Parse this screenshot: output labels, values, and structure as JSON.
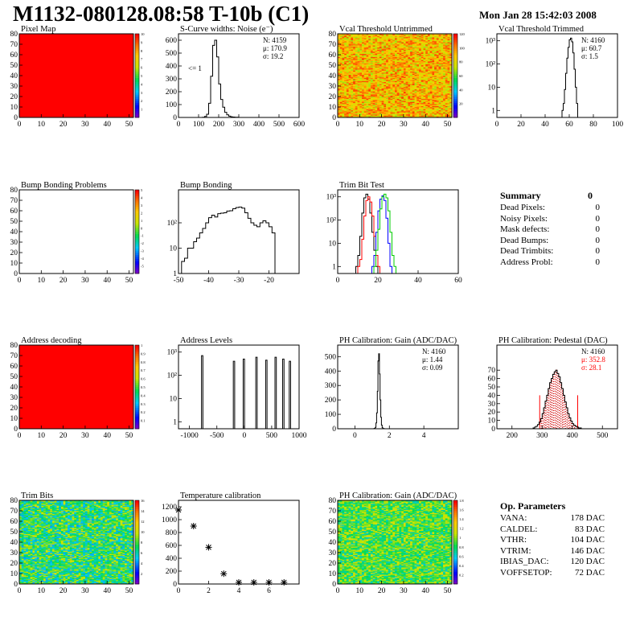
{
  "header": {
    "title": "M1132-080128.08:58 T-10b (C1)",
    "date": "Mon Jan 28 15:42:03 2008"
  },
  "chart_data": [
    {
      "id": "pixel-map",
      "type": "heatmap",
      "title": "Pixel Map",
      "xlim": [
        0,
        52
      ],
      "ylim": [
        0,
        80
      ],
      "xticks": [
        "0",
        "10",
        "20",
        "30",
        "40",
        "50"
      ],
      "yticks": [
        "0",
        "10",
        "20",
        "30",
        "40",
        "50",
        "60",
        "70",
        "80"
      ],
      "zlim": [
        0,
        10
      ],
      "zticks": [
        "1",
        "2",
        "3",
        "4",
        "5",
        "6",
        "7",
        "8",
        "9",
        "10"
      ],
      "fill": "uniform",
      "value": 10
    },
    {
      "id": "scurve-widths",
      "type": "bar",
      "title": "S-Curve widths: Noise (e⁻)",
      "xlim": [
        0,
        600
      ],
      "ylim": [
        0,
        650
      ],
      "xticks": [
        "0",
        "100",
        "200",
        "300",
        "400",
        "500",
        "600"
      ],
      "yticks": [
        "0",
        "100",
        "200",
        "300",
        "400",
        "500",
        "600"
      ],
      "stats": [
        "N: 4159",
        "μ: 170.9",
        "σ: 19.2"
      ],
      "annotation": "<= 1",
      "bins": {
        "x0": 100,
        "width": 10,
        "values": [
          0,
          0,
          2,
          8,
          25,
          110,
          320,
          560,
          600,
          470,
          260,
          140,
          80,
          40,
          20,
          10,
          5,
          3,
          2,
          1
        ]
      }
    },
    {
      "id": "vcal-untrimmed",
      "type": "heatmap",
      "title": "Vcal Threshold Untrimmed",
      "xlim": [
        0,
        52
      ],
      "ylim": [
        0,
        80
      ],
      "xticks": [
        "0",
        "10",
        "20",
        "30",
        "40",
        "50"
      ],
      "yticks": [
        "0",
        "10",
        "20",
        "30",
        "40",
        "50",
        "60",
        "70",
        "80"
      ],
      "zlim": [
        0,
        130
      ],
      "zticks": [
        "20",
        "40",
        "60",
        "80",
        "100",
        "120"
      ],
      "fill": "noise",
      "mean": 0.75,
      "spread": 0.12
    },
    {
      "id": "vcal-trimmed",
      "type": "bar",
      "title": "Vcal Threshold Trimmed",
      "xlim": [
        0,
        100
      ],
      "ylim": [
        0.5,
        2000
      ],
      "log": true,
      "xticks": [
        "0",
        "20",
        "40",
        "60",
        "80",
        "100"
      ],
      "yticks": [
        "1",
        "10",
        "10²",
        "10³"
      ],
      "stats": [
        "N: 4160",
        "μ: 60.7",
        "σ:  1.5"
      ],
      "bins": {
        "x0": 54,
        "width": 1,
        "values": [
          1,
          2,
          8,
          40,
          180,
          520,
          1100,
          1300,
          900,
          300,
          60,
          10,
          2
        ]
      }
    },
    {
      "id": "bump-bonding-problems",
      "type": "heatmap",
      "title": "Bump Bonding Problems",
      "xlim": [
        0,
        52
      ],
      "ylim": [
        0,
        80
      ],
      "xticks": [
        "0",
        "10",
        "20",
        "30",
        "40",
        "50"
      ],
      "yticks": [
        "0",
        "10",
        "20",
        "30",
        "40",
        "50",
        "60",
        "70",
        "80"
      ],
      "zlim": [
        -5,
        5
      ],
      "zticks": [
        "-5",
        "-4",
        "-3",
        "-2",
        "-1",
        "0",
        "1",
        "2",
        "3",
        "4",
        "5"
      ],
      "fill": "empty"
    },
    {
      "id": "bump-bonding",
      "type": "bar",
      "title": "Bump Bonding",
      "xlim": [
        -50,
        -10
      ],
      "ylim": [
        1,
        2000
      ],
      "log": true,
      "xticks": [
        "-50",
        "-40",
        "-30",
        "-20"
      ],
      "yticks": [
        "1",
        "10",
        "10²"
      ],
      "bins": {
        "x0": -49,
        "width": 1,
        "values": [
          3,
          4,
          10,
          10,
          18,
          25,
          40,
          60,
          100,
          160,
          200,
          170,
          230,
          240,
          250,
          290,
          300,
          360,
          400,
          420,
          380,
          250,
          150,
          100,
          80,
          70,
          100,
          120,
          100,
          70,
          40,
          1
        ]
      }
    },
    {
      "id": "trim-bit-test",
      "type": "line",
      "title": "Trim Bit Test",
      "xlim": [
        0,
        60
      ],
      "ylim": [
        0.5,
        2000
      ],
      "log": true,
      "xticks": [
        "0",
        "20",
        "40",
        "60"
      ],
      "yticks": [
        "1",
        "10",
        "10²",
        "10³"
      ],
      "series": [
        {
          "color": "#000000",
          "x0": 9,
          "width": 1,
          "values": [
            1,
            3,
            20,
            200,
            900,
            1300,
            800,
            200,
            30,
            5,
            1
          ]
        },
        {
          "color": "#ff0000",
          "x0": 10,
          "width": 1,
          "values": [
            1,
            2,
            15,
            150,
            700,
            1000,
            600,
            150,
            20,
            3,
            1
          ]
        },
        {
          "color": "#0000ff",
          "x0": 17,
          "width": 1,
          "values": [
            1,
            3,
            30,
            250,
            800,
            1100,
            700,
            120,
            10,
            1
          ]
        },
        {
          "color": "#00cc00",
          "x0": 18,
          "width": 1,
          "values": [
            1,
            5,
            40,
            300,
            1000,
            1300,
            900,
            250,
            30,
            3,
            1
          ]
        }
      ]
    },
    {
      "id": "address-decoding",
      "type": "heatmap",
      "title": "Address decoding",
      "xlim": [
        0,
        52
      ],
      "ylim": [
        0,
        80
      ],
      "xticks": [
        "0",
        "10",
        "20",
        "30",
        "40",
        "50"
      ],
      "yticks": [
        "0",
        "10",
        "20",
        "30",
        "40",
        "50",
        "60",
        "70",
        "80"
      ],
      "zlim": [
        0,
        1
      ],
      "zticks": [
        "0.1",
        "0.2",
        "0.3",
        "0.4",
        "0.5",
        "0.6",
        "0.7",
        "0.8",
        "0.9",
        "1"
      ],
      "fill": "uniform",
      "value": 1
    },
    {
      "id": "address-levels",
      "type": "bar",
      "title": "Address Levels",
      "xlim": [
        -1200,
        1000
      ],
      "ylim": [
        0.5,
        2000
      ],
      "log": true,
      "xticks": [
        "-1000",
        "-500",
        "0",
        "500",
        "1000"
      ],
      "yticks": [
        "1",
        "10",
        "10²",
        "10³"
      ],
      "peaks": [
        {
          "x": -780,
          "h": 700
        },
        {
          "x": -200,
          "h": 400
        },
        {
          "x": -20,
          "h": 500
        },
        {
          "x": 210,
          "h": 600
        },
        {
          "x": 390,
          "h": 450
        },
        {
          "x": 560,
          "h": 600
        },
        {
          "x": 700,
          "h": 500
        },
        {
          "x": 820,
          "h": 400
        }
      ]
    },
    {
      "id": "ph-gain",
      "type": "bar",
      "title": "PH Calibration: Gain (ADC/DAC)",
      "xlim": [
        -1,
        6
      ],
      "ylim": [
        0,
        580
      ],
      "xticks": [
        "0",
        "2",
        "4"
      ],
      "yticks": [
        "0",
        "100",
        "200",
        "300",
        "400",
        "500"
      ],
      "stats": [
        "N: 4160",
        "μ: 1.44",
        "σ: 0.09"
      ],
      "bins": {
        "x0": 1.1,
        "width": 0.04,
        "values": [
          1,
          3,
          10,
          40,
          110,
          260,
          470,
          520,
          380,
          200,
          80,
          25,
          8,
          2,
          1
        ]
      }
    },
    {
      "id": "ph-pedestal",
      "type": "bar",
      "title": "PH Calibration: Pedestal (DAC)",
      "xlim": [
        150,
        550
      ],
      "ylim": [
        0,
        100
      ],
      "xticks": [
        "200",
        "300",
        "400",
        "500"
      ],
      "yticks": [
        "0",
        "10",
        "20",
        "30",
        "40",
        "50",
        "60",
        "70"
      ],
      "stats": [
        "N: 4160",
        "μ: 352.8",
        "σ: 28.1"
      ],
      "stat_colors": [
        "#000",
        "#ff0000",
        "#ff0000"
      ],
      "markers": [
        292,
        418
      ],
      "bins": {
        "x0": 270,
        "width": 5,
        "values": [
          1,
          2,
          3,
          5,
          8,
          12,
          18,
          25,
          33,
          40,
          48,
          55,
          60,
          65,
          68,
          70,
          66,
          62,
          55,
          48,
          40,
          32,
          25,
          18,
          13,
          9,
          6,
          4,
          3,
          2,
          1,
          1
        ]
      }
    },
    {
      "id": "trim-bits",
      "type": "heatmap",
      "title": "Trim Bits",
      "xlim": [
        0,
        52
      ],
      "ylim": [
        0,
        80
      ],
      "xticks": [
        "0",
        "10",
        "20",
        "30",
        "40",
        "50"
      ],
      "yticks": [
        "0",
        "10",
        "20",
        "30",
        "40",
        "50",
        "60",
        "70",
        "80"
      ],
      "zlim": [
        0,
        16
      ],
      "zticks": [
        "2",
        "4",
        "6",
        "8",
        "10",
        "12",
        "14",
        "16"
      ],
      "fill": "noise",
      "mean": 0.45,
      "spread": 0.12
    },
    {
      "id": "temperature-calibration",
      "type": "scatter",
      "title": "Temperature calibration",
      "xlim": [
        0,
        8
      ],
      "ylim": [
        0,
        1300
      ],
      "xticks": [
        "0",
        "2",
        "4",
        "6"
      ],
      "yticks": [
        "0",
        "200",
        "400",
        "600",
        "800",
        "1000",
        "1200"
      ],
      "x": [
        0,
        1,
        2,
        3,
        4,
        5,
        6,
        7
      ],
      "y": [
        1150,
        900,
        570,
        160,
        25,
        25,
        25,
        25
      ]
    },
    {
      "id": "ph-gain-map",
      "type": "heatmap",
      "title": "PH Calibration: Gain (ADC/DAC)",
      "xlim": [
        0,
        52
      ],
      "ylim": [
        0,
        80
      ],
      "xticks": [
        "0",
        "10",
        "20",
        "30",
        "40",
        "50"
      ],
      "yticks": [
        "0",
        "10",
        "20",
        "30",
        "40",
        "50",
        "60",
        "70",
        "80"
      ],
      "zlim": [
        0,
        2
      ],
      "zticks": [
        "0.2",
        "0.4",
        "0.6",
        "0.8",
        "1",
        "1.2",
        "1.4",
        "1.6",
        "1.8"
      ],
      "fill": "noise",
      "mean": 0.5,
      "spread": 0.1
    }
  ],
  "summary": {
    "title": "Summary",
    "total": "0",
    "rows": [
      {
        "label": "Dead Pixels:",
        "value": "0"
      },
      {
        "label": "Noisy Pixels:",
        "value": "0"
      },
      {
        "label": "Mask defects:",
        "value": "0"
      },
      {
        "label": "Dead Bumps:",
        "value": "0"
      },
      {
        "label": "Dead Trimbits:",
        "value": "0"
      },
      {
        "label": "Address Probl:",
        "value": "0"
      }
    ]
  },
  "op_parameters": {
    "title": "Op. Parameters",
    "rows": [
      {
        "label": "VANA:",
        "value": "178 DAC"
      },
      {
        "label": "CALDEL:",
        "value": "83 DAC"
      },
      {
        "label": "VTHR:",
        "value": "104 DAC"
      },
      {
        "label": "VTRIM:",
        "value": "146 DAC"
      },
      {
        "label": "IBIAS_DAC:",
        "value": "120 DAC"
      },
      {
        "label": "VOFFSETOP:",
        "value": "72 DAC"
      }
    ]
  }
}
